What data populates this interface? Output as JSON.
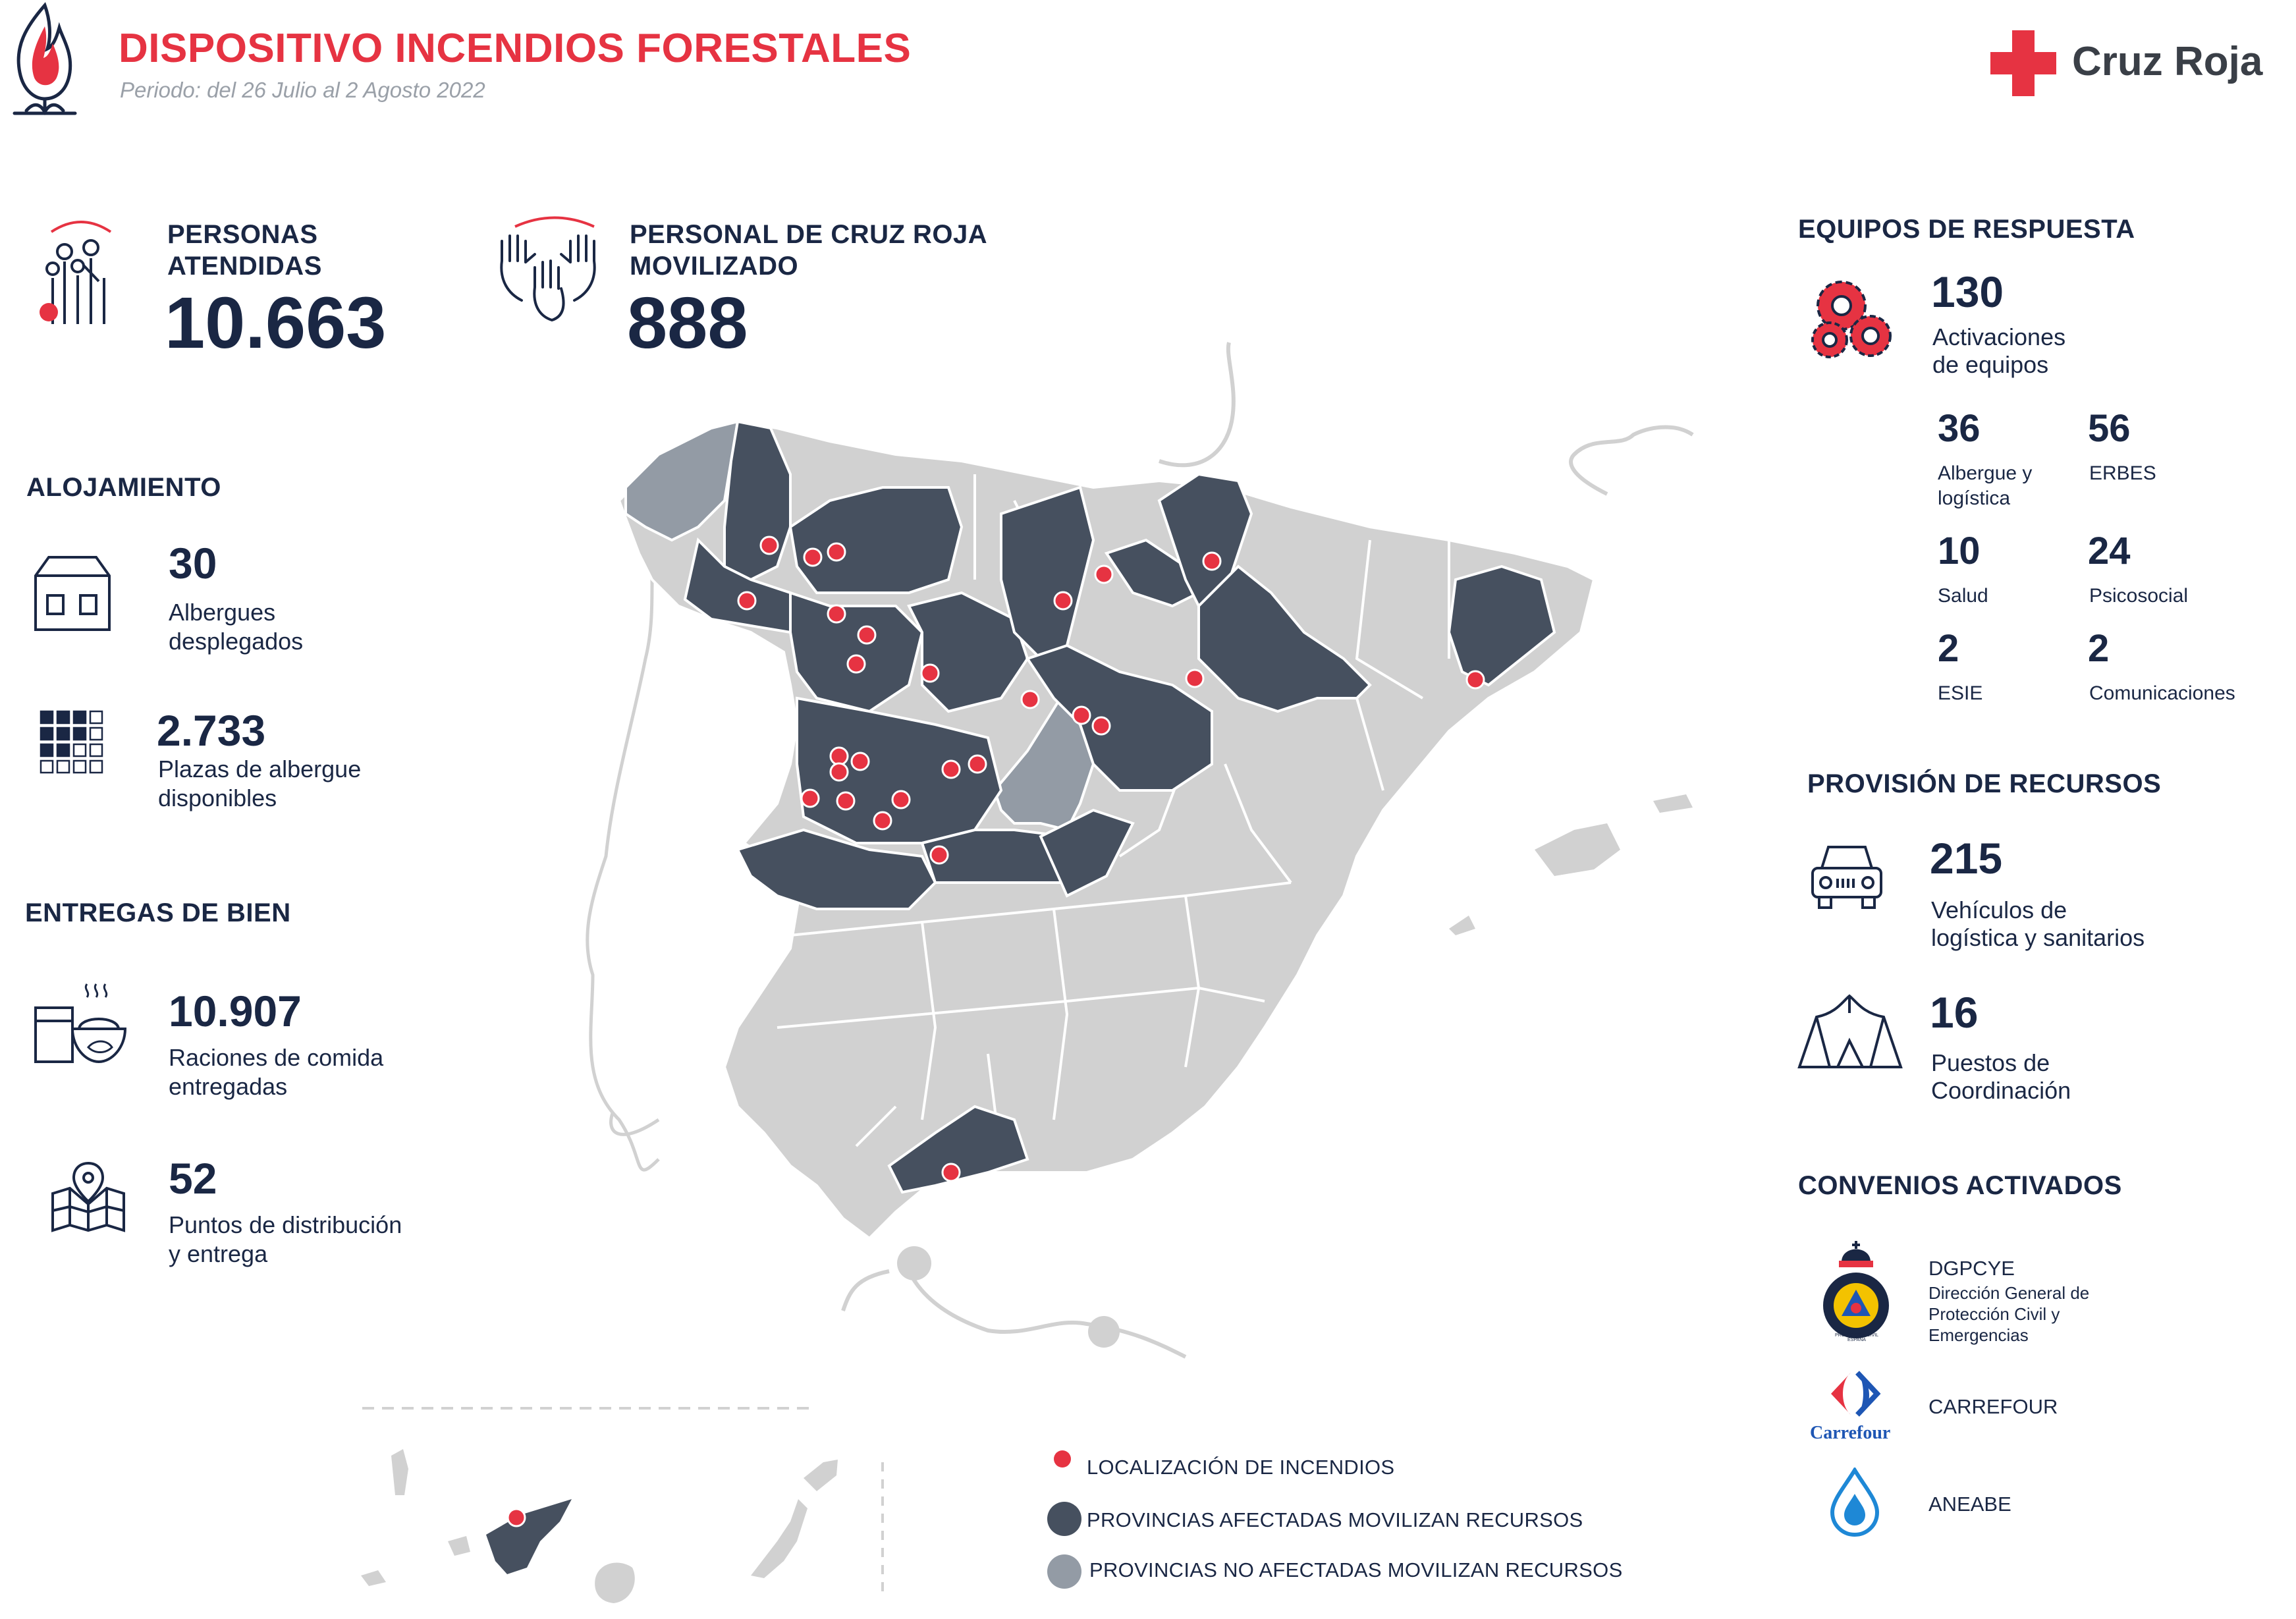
{
  "header": {
    "title": "DISPOSITIVO INCENDIOS FORESTALES",
    "period": "Periodo: del 26 Julio al 2 Agosto 2022",
    "brand": "Cruz Roja"
  },
  "stats": {
    "personas": {
      "label1": "PERSONAS",
      "label2": "ATENDIDAS",
      "value": "10.663"
    },
    "personal": {
      "label1": "PERSONAL DE CRUZ ROJA",
      "label2": "MOVILIZADO",
      "value": "888"
    }
  },
  "alojamiento": {
    "title": "ALOJAMIENTO",
    "albergues": {
      "value": "30",
      "label1": "Albergues",
      "label2": "desplegados"
    },
    "plazas": {
      "value": "2.733",
      "label1": "Plazas de albergue",
      "label2": "disponibles"
    }
  },
  "entregas": {
    "title": "ENTREGAS DE BIEN",
    "raciones": {
      "value": "10.907",
      "label1": "Raciones de comida",
      "label2": "entregadas"
    },
    "puntos": {
      "value": "52",
      "label1": "Puntos de distribución",
      "label2": "y entrega"
    }
  },
  "equipos": {
    "title": "EQUIPOS DE RESPUESTA",
    "activaciones": {
      "value": "130",
      "label1": "Activaciones",
      "label2": "de equipos"
    },
    "items": [
      {
        "value": "36",
        "label1": "Albergue y",
        "label2": "logística"
      },
      {
        "value": "56",
        "label1": "ERBES",
        "label2": ""
      },
      {
        "value": "10",
        "label1": "Salud",
        "label2": ""
      },
      {
        "value": "24",
        "label1": "Psicosocial",
        "label2": ""
      },
      {
        "value": "2",
        "label1": "ESIE",
        "label2": ""
      },
      {
        "value": "2",
        "label1": "Comunicaciones",
        "label2": ""
      }
    ]
  },
  "provision": {
    "title": "PROVISIÓN DE RECURSOS",
    "vehiculos": {
      "value": "215",
      "label1": "Vehículos de",
      "label2": "logística y sanitarios"
    },
    "puestos": {
      "value": "16",
      "label1": "Puestos de",
      "label2": "Coordinación"
    }
  },
  "convenios": {
    "title": "CONVENIOS ACTIVADOS",
    "dgpcye": {
      "name": "DGPCYE",
      "l1": "Dirección General de",
      "l2": "Protección Civil y",
      "l3": "Emergencias",
      "badge": "PROTECCIÓN CIVIL ESPAÑA"
    },
    "carrefour": {
      "name": "CARREFOUR",
      "logo_text": "Carrefour"
    },
    "aneabe": {
      "name": "ANEABE"
    }
  },
  "legend": {
    "incendios": "LOCALIZACIÓN DE INCENDIOS",
    "afectadas": "PROVINCIAS AFECTADAS MOVILIZAN RECURSOS",
    "no_afectadas": "PROVINCIAS NO AFECTADAS MOVILIZAN RECURSOS"
  },
  "colors": {
    "red": "#e63342",
    "navy": "#1a2744",
    "affected": "#46505f",
    "not_affected": "#939ba5",
    "land": "#d1d1d1"
  }
}
